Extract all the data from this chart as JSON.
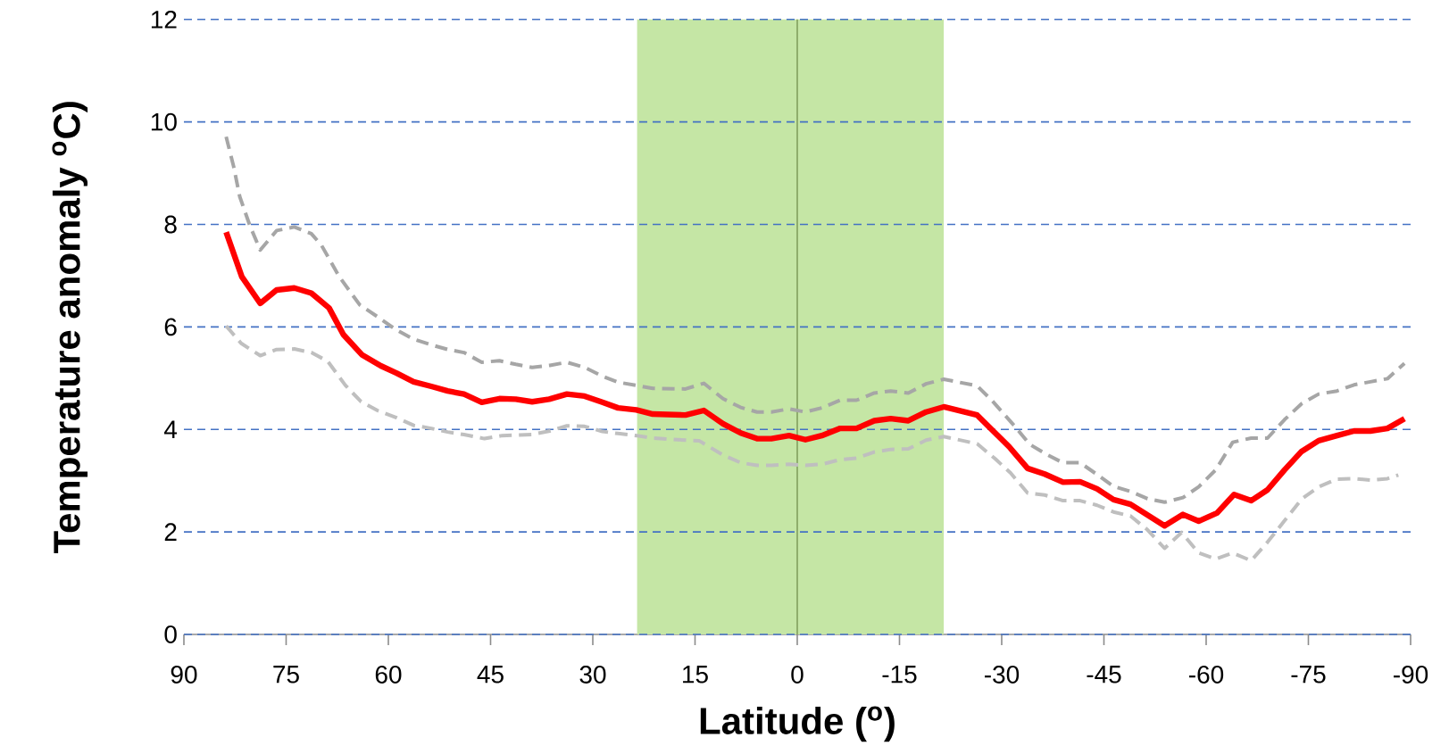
{
  "chart_data": {
    "type": "line",
    "xlabel": "Latitude ($^{o}$)",
    "ylabel": "Temperature anomaly $^{o}$C)",
    "xlim": [
      90,
      -90
    ],
    "xticks": [
      90,
      75,
      60,
      45,
      30,
      15,
      0,
      -15,
      -30,
      -45,
      -60,
      -75,
      -90
    ],
    "ylim": [
      0,
      12
    ],
    "yticks": [
      0,
      2,
      4,
      6,
      8,
      10,
      12
    ],
    "grid": "y",
    "bands": [
      {
        "axis": "x",
        "from": 23.5,
        "to": -21.5,
        "color": "#c5e6a5"
      }
    ],
    "ref_lines": [
      {
        "axis": "x",
        "value": 0,
        "color": "#8fae6c"
      }
    ],
    "series": [
      {
        "color": "#a6a6a6",
        "line_style": "dashed",
        "x": [
          83.8,
          82.7,
          81.8,
          80.3,
          78.8,
          76.4,
          73.8,
          71.3,
          69.8,
          67.2,
          64.2,
          61.6,
          58.8,
          56.3,
          53.7,
          51.3,
          48.9,
          46.3,
          43.7,
          41.3,
          38.9,
          36.3,
          33.8,
          31.2,
          28.6,
          26.3,
          23.6,
          21.2,
          16.4,
          13.7,
          10.9,
          8.3,
          5.9,
          3.8,
          1.2,
          -1.2,
          -3.6,
          -6.3,
          -8.7,
          -11.3,
          -13.7,
          -16.3,
          -18.9,
          -21.5,
          -26.4,
          -28.6,
          -31.8,
          -34.1,
          -36.6,
          -39.0,
          -41.5,
          -44.0,
          -46.4,
          -48.9,
          -51.4,
          -53.9,
          -56.6,
          -58.9,
          -61.4,
          -63.9,
          -66.6,
          -69.0,
          -71.5,
          -74.0,
          -76.5,
          -79.2,
          -81.7,
          -84.1,
          -86.6,
          -89.1
        ],
        "values": [
          9.71,
          9.13,
          8.54,
          7.97,
          7.5,
          7.88,
          7.95,
          7.82,
          7.59,
          6.98,
          6.43,
          6.2,
          5.94,
          5.76,
          5.65,
          5.56,
          5.5,
          5.31,
          5.34,
          5.27,
          5.21,
          5.25,
          5.31,
          5.21,
          5.04,
          4.92,
          4.86,
          4.8,
          4.79,
          4.9,
          4.6,
          4.43,
          4.34,
          4.34,
          4.4,
          4.34,
          4.42,
          4.57,
          4.57,
          4.71,
          4.75,
          4.71,
          4.89,
          4.98,
          4.85,
          4.56,
          4.08,
          3.71,
          3.51,
          3.35,
          3.35,
          3.12,
          2.89,
          2.79,
          2.65,
          2.58,
          2.67,
          2.88,
          3.21,
          3.75,
          3.83,
          3.83,
          4.19,
          4.5,
          4.69,
          4.75,
          4.87,
          4.93,
          4.99,
          5.29
        ]
      },
      {
        "color": "#bfbfbf",
        "line_style": "dashed",
        "x": [
          83.8,
          81.6,
          78.8,
          76.4,
          73.8,
          71.3,
          68.9,
          66.3,
          64.0,
          61.6,
          58.8,
          56.3,
          53.7,
          51.3,
          48.9,
          45.9,
          43.3,
          40.7,
          38.9,
          36.3,
          33.8,
          31.2,
          28.6,
          26.3,
          23.6,
          21.2,
          16.4,
          14.4,
          10.9,
          8.3,
          5.9,
          3.8,
          1.2,
          -1.2,
          -3.6,
          -6.3,
          -8.7,
          -11.3,
          -13.7,
          -16.3,
          -18.9,
          -21.5,
          -26.4,
          -29.1,
          -31.3,
          -33.8,
          -36.3,
          -39.0,
          -41.5,
          -44.0,
          -46.4,
          -48.9,
          -51.4,
          -53.9,
          -56.4,
          -58.9,
          -61.4,
          -63.9,
          -66.6,
          -69.0,
          -71.5,
          -74.0,
          -76.5,
          -79.2,
          -81.7,
          -84.1,
          -86.6,
          -88.2
        ],
        "values": [
          6.02,
          5.68,
          5.44,
          5.56,
          5.57,
          5.5,
          5.33,
          4.86,
          4.54,
          4.37,
          4.23,
          4.08,
          4.02,
          3.95,
          3.9,
          3.82,
          3.88,
          3.89,
          3.9,
          3.97,
          4.07,
          4.06,
          3.96,
          3.92,
          3.88,
          3.83,
          3.79,
          3.78,
          3.5,
          3.35,
          3.3,
          3.3,
          3.32,
          3.3,
          3.32,
          3.41,
          3.44,
          3.56,
          3.61,
          3.62,
          3.79,
          3.86,
          3.72,
          3.42,
          3.15,
          2.76,
          2.72,
          2.61,
          2.61,
          2.52,
          2.39,
          2.31,
          2.04,
          1.68,
          1.99,
          1.59,
          1.47,
          1.59,
          1.44,
          1.8,
          2.22,
          2.64,
          2.88,
          3.03,
          3.04,
          3.01,
          3.04,
          3.11
        ]
      },
      {
        "color": "#ff0000",
        "line_style": "solid",
        "x": [
          83.8,
          81.5,
          78.8,
          76.4,
          73.8,
          71.3,
          68.7,
          66.6,
          63.9,
          61.1,
          58.8,
          56.3,
          53.7,
          51.3,
          48.9,
          46.3,
          43.7,
          41.3,
          38.9,
          36.4,
          33.8,
          31.2,
          28.6,
          26.3,
          23.6,
          21.2,
          16.4,
          13.7,
          10.9,
          8.3,
          5.9,
          3.8,
          1.2,
          -1.2,
          -3.6,
          -6.3,
          -8.7,
          -11.3,
          -13.7,
          -16.3,
          -18.9,
          -21.5,
          -26.4,
          -31.1,
          -33.8,
          -36.3,
          -39.0,
          -41.5,
          -44.0,
          -46.4,
          -48.9,
          -53.9,
          -56.6,
          -58.9,
          -61.6,
          -64.1,
          -66.6,
          -69.0,
          -71.5,
          -74.0,
          -76.5,
          -79.2,
          -81.7,
          -84.1,
          -86.6,
          -89.1
        ],
        "values": [
          7.85,
          6.98,
          6.46,
          6.72,
          6.76,
          6.66,
          6.37,
          5.85,
          5.46,
          5.24,
          5.1,
          4.93,
          4.84,
          4.75,
          4.69,
          4.53,
          4.6,
          4.59,
          4.54,
          4.59,
          4.69,
          4.65,
          4.53,
          4.42,
          4.38,
          4.3,
          4.28,
          4.37,
          4.11,
          3.93,
          3.82,
          3.82,
          3.88,
          3.8,
          3.88,
          4.02,
          4.02,
          4.17,
          4.21,
          4.17,
          4.34,
          4.44,
          4.28,
          3.66,
          3.24,
          3.13,
          2.97,
          2.98,
          2.84,
          2.63,
          2.54,
          2.12,
          2.34,
          2.21,
          2.37,
          2.73,
          2.61,
          2.82,
          3.21,
          3.57,
          3.78,
          3.88,
          3.97,
          3.97,
          4.02,
          4.21
        ]
      }
    ]
  }
}
